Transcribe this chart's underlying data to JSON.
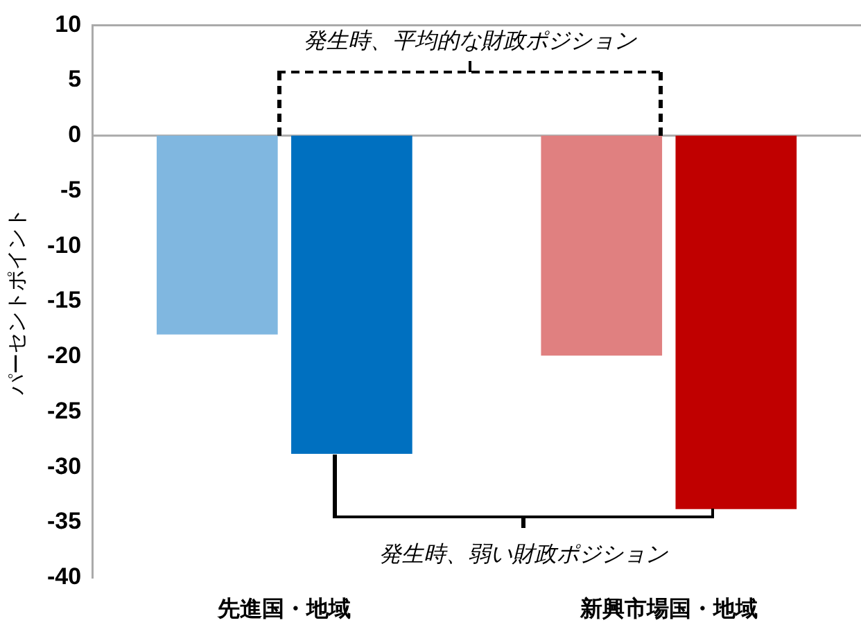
{
  "chart_data": {
    "type": "bar",
    "ylabel": "パーセントポイント",
    "categories": [
      "先進国・地域",
      "新興市場国・地域"
    ],
    "series": [
      {
        "colors": [
          "#80b7e0",
          "#e08080"
        ],
        "values": [
          -18,
          -19.9
        ]
      },
      {
        "colors": [
          "#0070c0",
          "#c00000"
        ],
        "values": [
          -28.8,
          -33.8
        ]
      }
    ],
    "ylim": [
      -40,
      10
    ],
    "yticks": [
      -40,
      -35,
      -30,
      -25,
      -20,
      -15,
      -10,
      -5,
      0,
      5,
      10
    ],
    "legend": false,
    "annotations": [
      "発生時、平均的な財政ポジション",
      "発生時、弱い財政ポジション"
    ]
  }
}
